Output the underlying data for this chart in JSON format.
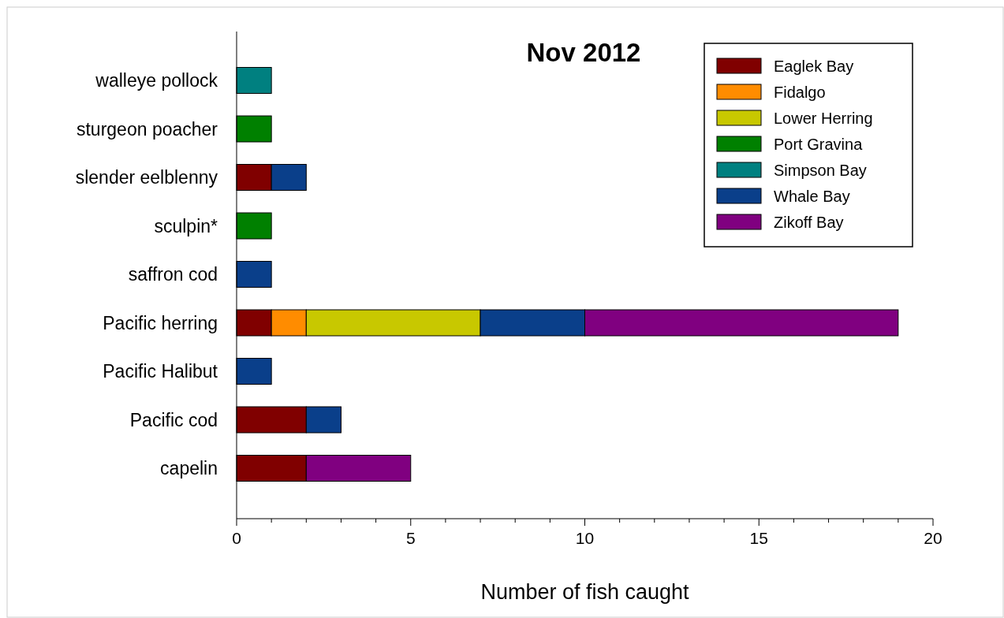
{
  "chart_data": {
    "type": "bar",
    "title": "Nov 2012",
    "xlabel": "Number of fish caught",
    "orientation": "horizontal",
    "stacked": true,
    "categories": [
      "walleye pollock",
      "sturgeon poacher",
      "slender eelblenny",
      "sculpin*",
      "saffron cod",
      "Pacific herring",
      "Pacific Halibut",
      "Pacific cod",
      "capelin"
    ],
    "series": [
      {
        "name": "Eaglek Bay",
        "color": "#800000",
        "values": [
          null,
          null,
          1,
          null,
          null,
          1,
          null,
          2,
          2
        ]
      },
      {
        "name": "Fidalgo",
        "color": "#ff8c00",
        "values": [
          null,
          null,
          null,
          null,
          null,
          1,
          null,
          null,
          null
        ]
      },
      {
        "name": "Lower Herring",
        "color": "#c8c800",
        "values": [
          null,
          null,
          null,
          null,
          null,
          5,
          null,
          null,
          null
        ]
      },
      {
        "name": "Port Gravina",
        "color": "#008000",
        "values": [
          null,
          1,
          null,
          1,
          null,
          null,
          null,
          null,
          null
        ]
      },
      {
        "name": "Simpson Bay",
        "color": "#008080",
        "values": [
          1,
          null,
          null,
          null,
          null,
          null,
          null,
          null,
          null
        ]
      },
      {
        "name": "Whale Bay",
        "color": "#0a3f8a",
        "values": [
          null,
          null,
          1,
          null,
          1,
          3,
          1,
          1,
          null
        ]
      },
      {
        "name": "Zikoff Bay",
        "color": "#800080",
        "values": [
          null,
          null,
          null,
          null,
          null,
          9,
          null,
          null,
          3
        ]
      }
    ],
    "xlim": [
      0,
      20
    ],
    "xticks": [
      0,
      {
        "value": 1,
        "label": null
      },
      {
        "value": 2,
        "label": null
      },
      {
        "value": 3,
        "label": null
      },
      {
        "value": 4,
        "label": null
      },
      5,
      {
        "value": 6,
        "label": null
      },
      {
        "value": 7,
        "label": null
      },
      {
        "value": 8,
        "label": null
      },
      {
        "value": 9,
        "label": null
      },
      10,
      {
        "value": 11,
        "label": null
      },
      {
        "value": 12,
        "label": null
      },
      {
        "value": 13,
        "label": null
      },
      {
        "value": 14,
        "label": null
      },
      15,
      {
        "value": 16,
        "label": null
      },
      {
        "value": 17,
        "label": null
      },
      {
        "value": 18,
        "label": null
      },
      {
        "value": 19,
        "label": null
      },
      20
    ],
    "legend": "top right",
    "grid": false
  }
}
